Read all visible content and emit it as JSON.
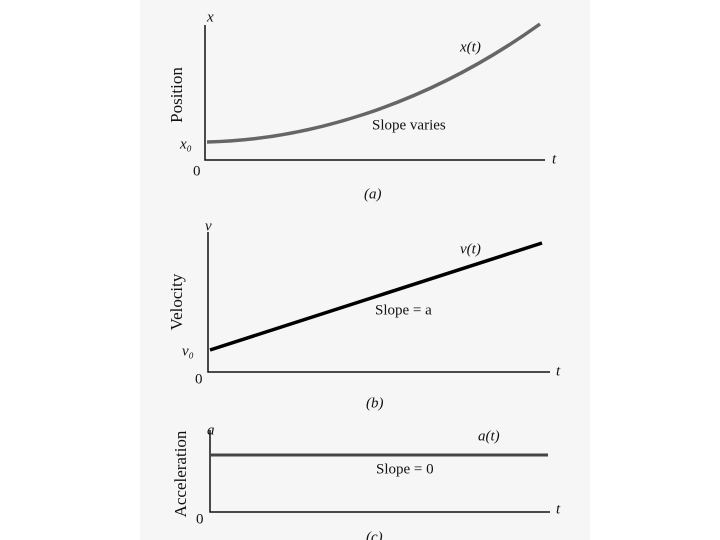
{
  "panels": [
    {
      "axis_y": "x",
      "quantity": "Position",
      "curve_label": "x(t)",
      "slope_text": "Slope varies",
      "intercept": "x₀",
      "origin": "0",
      "axis_x": "t",
      "caption": "(a)"
    },
    {
      "axis_y": "v",
      "quantity": "Velocity",
      "curve_label": "v(t)",
      "slope_text": "Slope = a",
      "intercept": "v₀",
      "origin": "0",
      "axis_x": "t",
      "caption": "(b)"
    },
    {
      "axis_y": "a",
      "quantity": "Acceleration",
      "curve_label": "a(t)",
      "slope_text": "Slope = 0",
      "origin": "0",
      "axis_x": "t",
      "caption": "(c)"
    }
  ]
}
